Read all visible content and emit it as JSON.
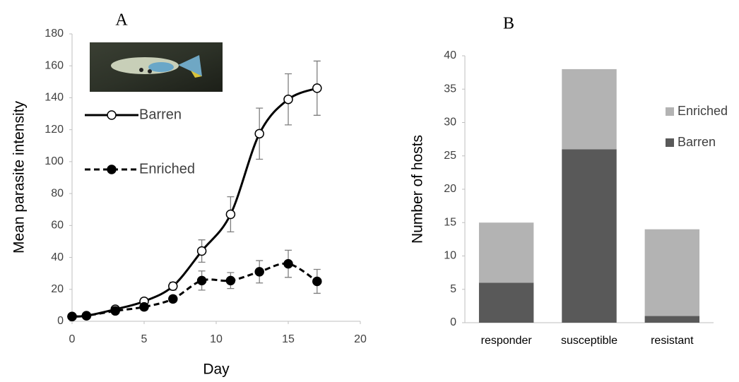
{
  "chart_data": [
    {
      "type": "line",
      "title": "A",
      "x_label": "Day",
      "y_label": "Mean parasite intensity",
      "x": [
        0,
        1,
        3,
        5,
        7,
        9,
        11,
        13,
        15,
        17
      ],
      "series": [
        {
          "name": "Barren",
          "color": "#000000",
          "marker": "open",
          "line_style": "solid",
          "values": [
            3,
            3.5,
            7.5,
            12.5,
            22,
            44,
            67,
            117.5,
            139,
            146
          ],
          "errors": [
            1,
            1,
            1.5,
            2,
            2.5,
            7,
            11,
            16,
            16,
            17
          ]
        },
        {
          "name": "Enriched",
          "color": "#000000",
          "marker": "filled",
          "line_style": "dashed",
          "values": [
            3,
            3.5,
            6.5,
            9,
            14,
            25.5,
            25.5,
            31,
            36,
            25
          ],
          "errors": [
            1,
            1,
            1.5,
            2,
            2,
            6,
            5,
            7,
            8.5,
            7.5
          ]
        }
      ],
      "xlim": [
        0,
        20
      ],
      "xticks": [
        0,
        5,
        10,
        15,
        20
      ],
      "ylim": [
        0,
        180
      ],
      "yticks": [
        0,
        20,
        40,
        60,
        80,
        100,
        120,
        140,
        160,
        180
      ],
      "grid": false
    },
    {
      "type": "bar",
      "title": "B",
      "y_label": "Number of hosts",
      "stacked": true,
      "categories": [
        "responder",
        "susceptible",
        "resistant"
      ],
      "series": [
        {
          "name": "Barren",
          "color": "#595959",
          "values": [
            6,
            26,
            1
          ]
        },
        {
          "name": "Enriched",
          "color": "#b3b3b3",
          "values": [
            9,
            12,
            13
          ]
        }
      ],
      "ylim": [
        0,
        40
      ],
      "yticks": [
        0,
        5,
        10,
        15,
        20,
        25,
        30,
        35,
        40
      ],
      "grid": false
    }
  ]
}
